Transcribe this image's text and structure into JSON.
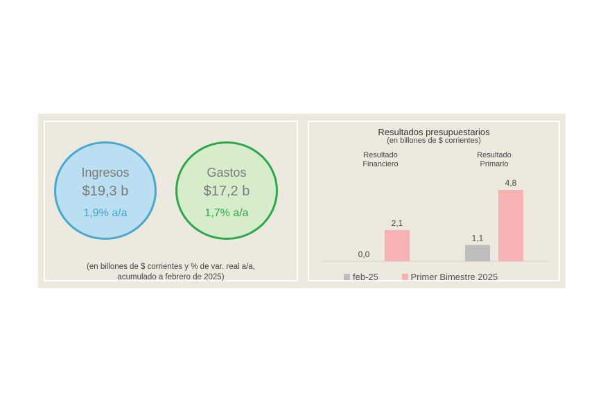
{
  "summary": {
    "ingresos": {
      "label": "Ingresos",
      "value": "$19,3 b",
      "variation": "1,9% a/a"
    },
    "gastos": {
      "label": "Gastos",
      "value": "$17,2 b",
      "variation": "1,7% a/a"
    },
    "note_line1": "(en billones de $ corrientes y % de var. real a/a,",
    "note_line2": "acumulado a febrero de 2025)"
  },
  "chart_data": {
    "type": "bar",
    "title": "Resultados presupuestarios",
    "subtitle": "(en billones de $ corrientes)",
    "categories": [
      "Resultado Financiero",
      "Resultado Primario"
    ],
    "category_lines": [
      [
        "Resultado",
        "Financiero"
      ],
      [
        "Resultado",
        "Primario"
      ]
    ],
    "series": [
      {
        "name": "feb-25",
        "values": [
          0.0,
          1.1
        ],
        "labels": [
          "0,0",
          "1,1"
        ],
        "color": "#bdbdbd"
      },
      {
        "name": "Primer Bimestre 2025",
        "values": [
          2.1,
          4.8
        ],
        "labels": [
          "2,1",
          "4,8"
        ],
        "color": "#f6b3b6"
      }
    ],
    "ylim": [
      0,
      5.5
    ],
    "grid": false,
    "legend_position": "bottom"
  },
  "colors": {
    "ingresos_accent": "#4aa8d0",
    "gastos_accent": "#2ca84a",
    "feb": "#bdbdbd",
    "bimestre": "#f6b3b6"
  }
}
